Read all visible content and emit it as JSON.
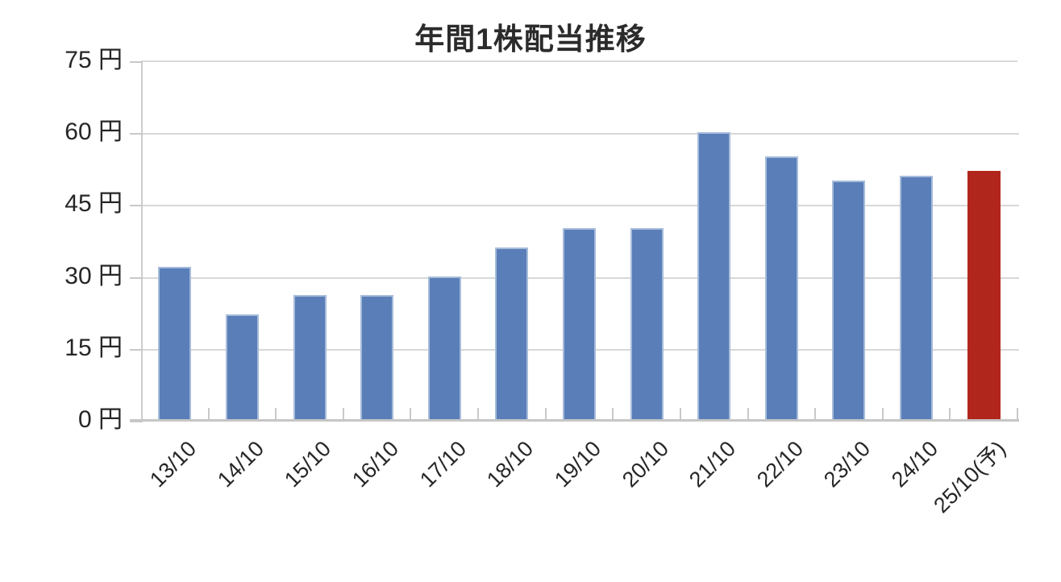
{
  "chart_data": {
    "type": "bar",
    "title": "年間1株配当推移",
    "unit": "円",
    "categories": [
      "13/10",
      "14/10",
      "15/10",
      "16/10",
      "17/10",
      "18/10",
      "19/10",
      "20/10",
      "21/10",
      "22/10",
      "23/10",
      "24/10",
      "25/10(予)"
    ],
    "values": [
      32,
      22,
      26,
      26,
      30,
      36,
      40,
      40,
      60,
      55,
      50,
      51,
      52
    ],
    "forecast_index": 12,
    "ylim": [
      0,
      75
    ],
    "yticks": [
      0,
      15,
      30,
      45,
      60,
      75
    ],
    "ytick_labels": [
      "0 円",
      "15 円",
      "30 円",
      "45 円",
      "60 円",
      "75 円"
    ],
    "grid": true,
    "legend_position": "none",
    "xlabel": "",
    "ylabel": "",
    "colors": {
      "bar_default": "#5a7eb8",
      "bar_border": "#a6bcda",
      "bar_forecast": "#b1261c",
      "gridline": "#d8d8d8",
      "axis": "#c6c6c6",
      "text": "#262626",
      "title_text": "#2b2b2b",
      "background": "#ffffff"
    }
  }
}
